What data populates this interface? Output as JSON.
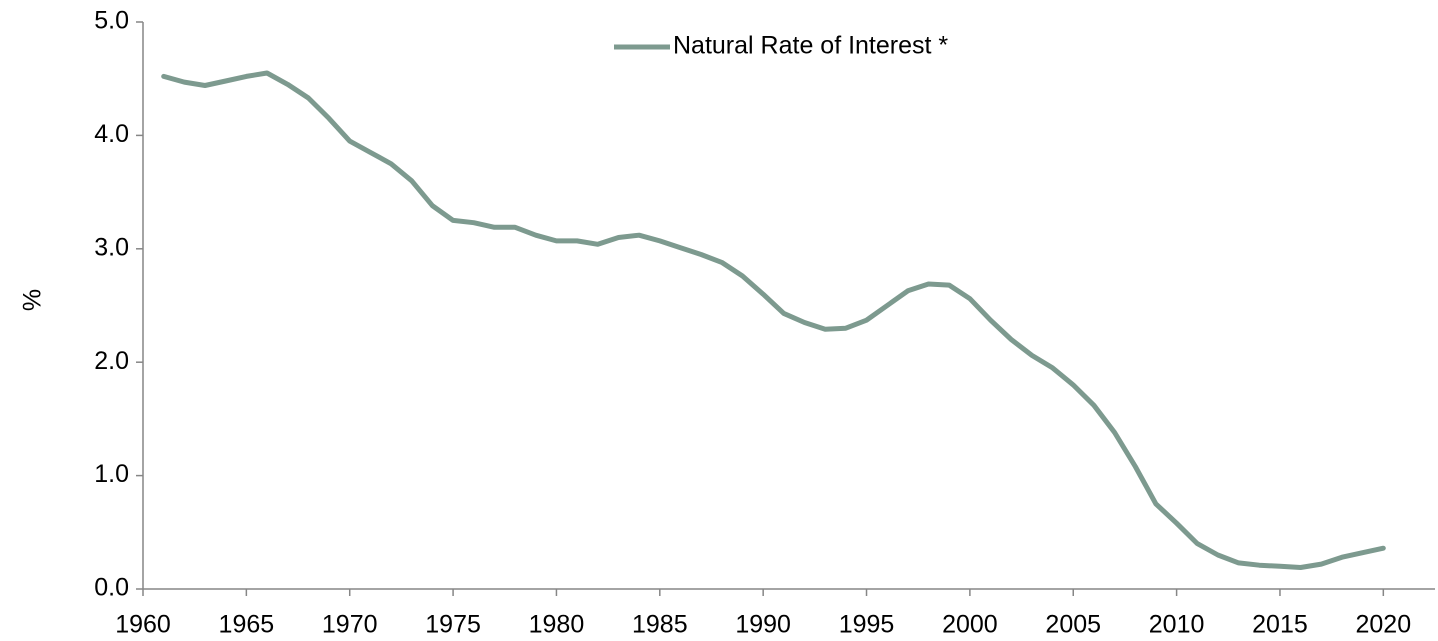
{
  "chart_data": {
    "type": "line",
    "y_label": "%",
    "x": [
      1961,
      1962,
      1963,
      1964,
      1965,
      1966,
      1967,
      1968,
      1969,
      1970,
      1971,
      1972,
      1973,
      1974,
      1975,
      1976,
      1977,
      1978,
      1979,
      1980,
      1981,
      1982,
      1983,
      1984,
      1985,
      1986,
      1987,
      1988,
      1989,
      1990,
      1991,
      1992,
      1993,
      1994,
      1995,
      1996,
      1997,
      1998,
      1999,
      2000,
      2001,
      2002,
      2003,
      2004,
      2005,
      2006,
      2007,
      2008,
      2009,
      2010,
      2011,
      2012,
      2013,
      2014,
      2015,
      2016,
      2017,
      2018,
      2019,
      2020
    ],
    "series": [
      {
        "name": "Natural Rate of Interest *",
        "color": "#7d9a8f",
        "values": [
          4.52,
          4.47,
          4.44,
          4.48,
          4.52,
          4.55,
          4.45,
          4.33,
          4.15,
          3.95,
          3.85,
          3.75,
          3.6,
          3.38,
          3.25,
          3.23,
          3.19,
          3.19,
          3.12,
          3.07,
          3.07,
          3.04,
          3.1,
          3.12,
          3.07,
          3.01,
          2.95,
          2.88,
          2.76,
          2.6,
          2.43,
          2.35,
          2.29,
          2.3,
          2.37,
          2.5,
          2.63,
          2.69,
          2.68,
          2.56,
          2.37,
          2.2,
          2.06,
          1.95,
          1.8,
          1.62,
          1.38,
          1.08,
          0.75,
          0.58,
          0.4,
          0.3,
          0.23,
          0.21,
          0.2,
          0.19,
          0.22,
          0.28,
          0.32,
          0.36
        ]
      }
    ],
    "xlim": [
      1960,
      2022.5
    ],
    "xticks": [
      1960,
      1965,
      1970,
      1975,
      1980,
      1985,
      1990,
      1995,
      2000,
      2005,
      2010,
      2015,
      2020
    ],
    "ylim": [
      0,
      5
    ],
    "yticks": [
      {
        "value": 0,
        "label": "0.0"
      },
      {
        "value": 1,
        "label": "1.0"
      },
      {
        "value": 2,
        "label": "2.0"
      },
      {
        "value": 3,
        "label": "3.0"
      },
      {
        "value": 4,
        "label": "4.0"
      },
      {
        "value": 5,
        "label": "5.0"
      }
    ],
    "legend": "top"
  }
}
